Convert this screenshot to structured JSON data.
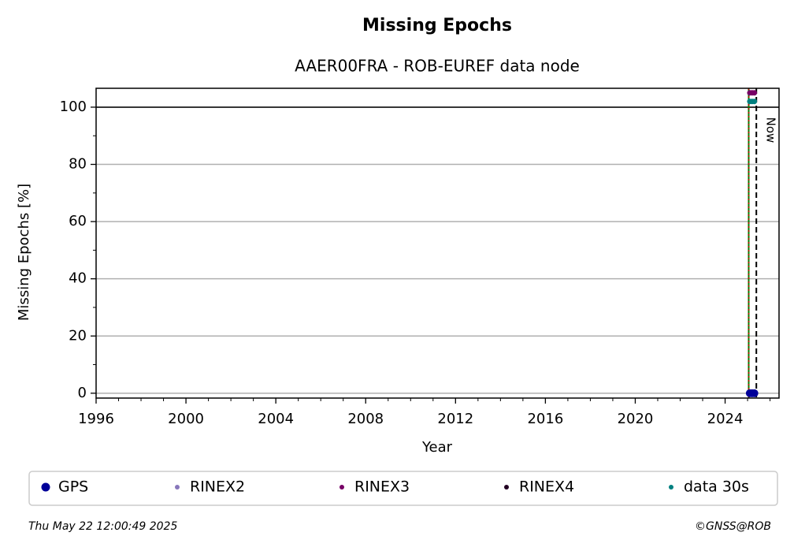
{
  "chart_data": {
    "type": "scatter",
    "title": "Missing Epochs",
    "subtitle": "AAER00FRA - ROB-EUREF data node",
    "xlabel": "Year",
    "ylabel": "Missing Epochs [%]",
    "xlim": [
      1996,
      2026.4
    ],
    "ylim": [
      -1.7,
      106.6
    ],
    "xticks": [
      1996,
      2000,
      2004,
      2008,
      2012,
      2016,
      2020,
      2024
    ],
    "yticks": [
      0,
      20,
      40,
      60,
      80,
      100
    ],
    "x_minor_ticks": [
      1997,
      1998,
      1999,
      2001,
      2002,
      2003,
      2005,
      2006,
      2007,
      2009,
      2010,
      2011,
      2013,
      2014,
      2015,
      2017,
      2018,
      2019,
      2021,
      2022,
      2023,
      2025,
      2026
    ],
    "y_minor_ticks": [
      10,
      30,
      50,
      70,
      90
    ],
    "grid": true,
    "reference_line_y": 100,
    "start_line_x": 2025.05,
    "now_line_x": 2025.39,
    "now_label": "Now",
    "series": [
      {
        "name": "GPS",
        "color": "#000099",
        "x": [
          2025.1,
          2025.2,
          2025.3
        ],
        "values": [
          0,
          0,
          0
        ]
      },
      {
        "name": "RINEX2",
        "color": "#8877bb",
        "x": [],
        "values": []
      },
      {
        "name": "RINEX3",
        "color": "#770066",
        "x": [
          2025.1,
          2025.2,
          2025.3
        ],
        "values": [
          105,
          105,
          105
        ]
      },
      {
        "name": "RINEX4",
        "color": "#220022",
        "x": [],
        "values": []
      },
      {
        "name": "data 30s",
        "color": "#008080",
        "x": [
          2025.1,
          2025.2,
          2025.3
        ],
        "values": [
          102,
          102,
          102
        ]
      }
    ],
    "footer_left": "Thu May 22 12:00:49 2025",
    "footer_right": "©GNSS@ROB"
  }
}
